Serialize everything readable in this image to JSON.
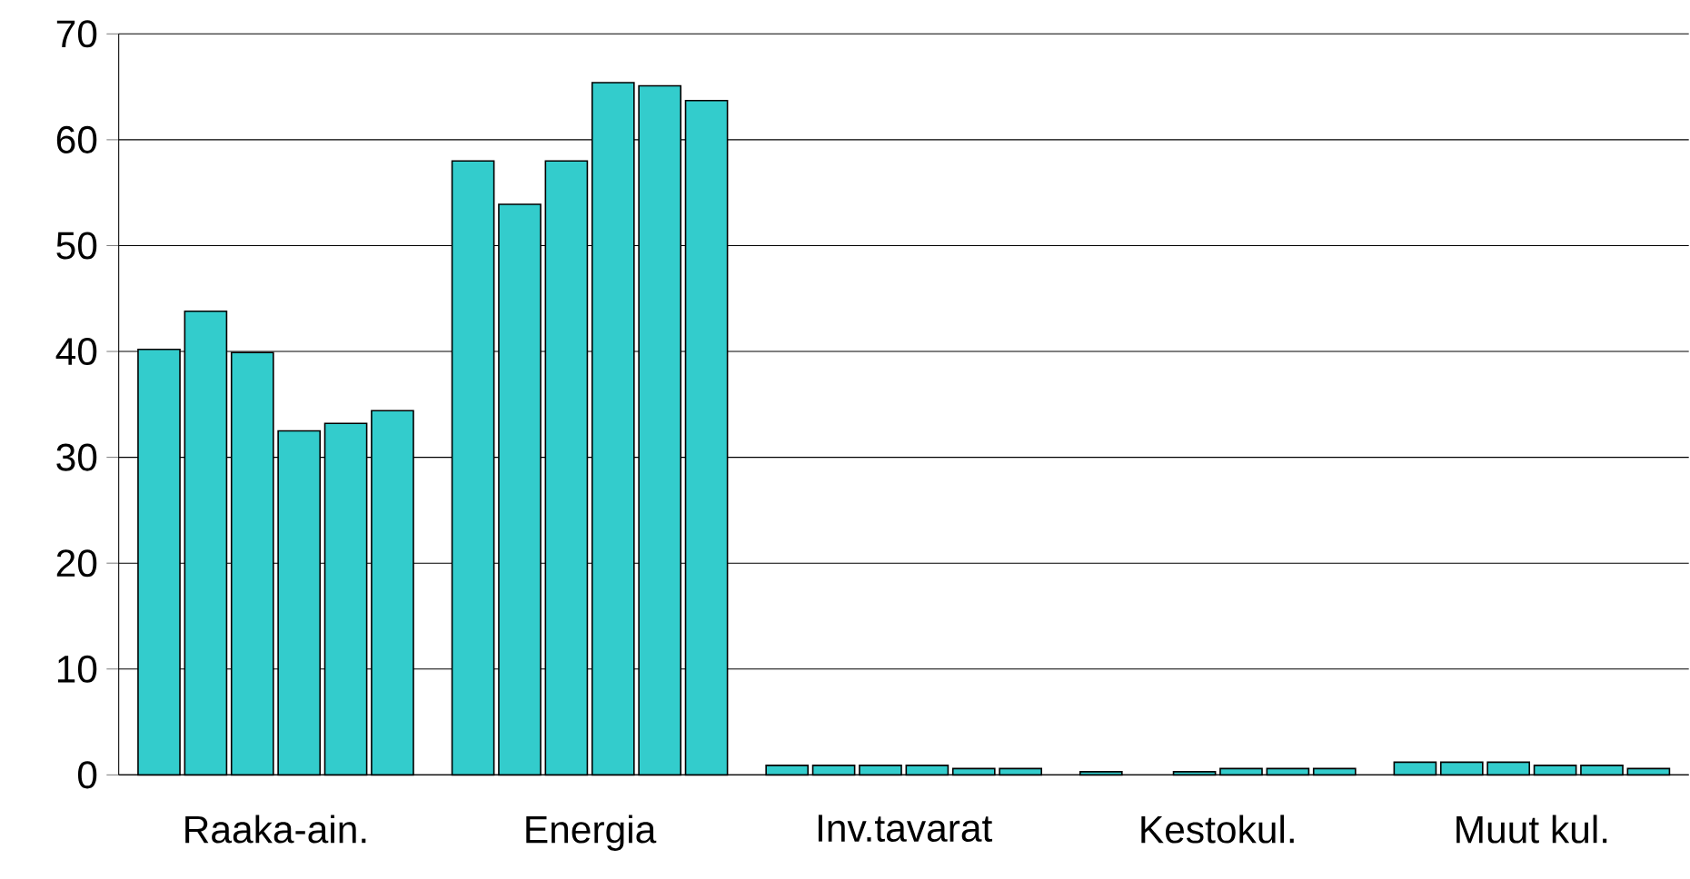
{
  "chart_data": {
    "type": "bar",
    "categories": [
      "Raaka-ain.",
      "Energia",
      "Inv.tavarat",
      "Kestokul.",
      "Muut kul."
    ],
    "series": [
      {
        "color": "#33cccc",
        "values": [
          40.2,
          58.0,
          0.9,
          0.3,
          1.2
        ]
      },
      {
        "color": "#33cccc",
        "values": [
          43.8,
          53.9,
          0.9,
          null,
          1.2
        ]
      },
      {
        "color": "#33cccc",
        "values": [
          39.9,
          58.0,
          0.9,
          0.3,
          1.2
        ]
      },
      {
        "color": "#33cccc",
        "values": [
          32.5,
          65.4,
          0.9,
          0.6,
          0.9
        ]
      },
      {
        "color": "#33cccc",
        "values": [
          33.2,
          65.1,
          0.6,
          0.6,
          0.9
        ]
      },
      {
        "color": "#33cccc",
        "values": [
          34.4,
          63.7,
          0.6,
          0.6,
          0.6
        ]
      }
    ],
    "ylim": [
      0,
      70
    ],
    "yticks": [
      0,
      10,
      20,
      30,
      40,
      50,
      60,
      70
    ],
    "grid": "y"
  }
}
